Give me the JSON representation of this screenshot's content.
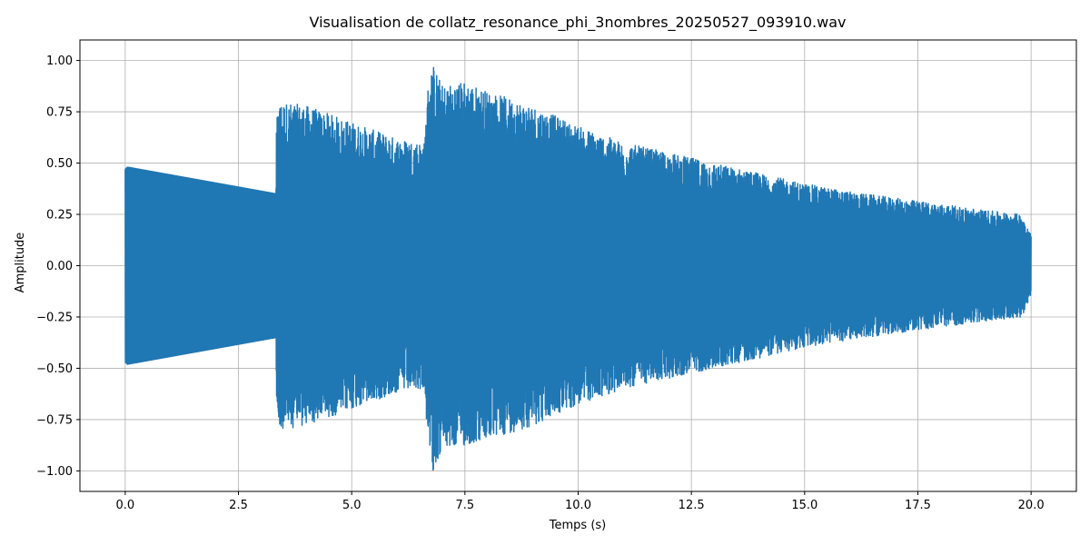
{
  "chart_data": {
    "type": "line",
    "title": "Visualisation de collatz_resonance_phi_3nombres_20250527_093910.wav",
    "xlabel": "Temps (s)",
    "ylabel": "Amplitude",
    "xlim": [
      -1.0,
      21.0
    ],
    "ylim": [
      -1.1,
      1.1
    ],
    "grid": true,
    "xticks": [
      0.0,
      2.5,
      5.0,
      7.5,
      10.0,
      12.5,
      15.0,
      17.5,
      20.0
    ],
    "xtick_labels": [
      "0.0",
      "2.5",
      "5.0",
      "7.5",
      "10.0",
      "12.5",
      "15.0",
      "17.5",
      "20.0"
    ],
    "yticks": [
      1.0,
      0.75,
      0.5,
      0.25,
      0.0,
      -0.25,
      -0.5,
      -0.75,
      -1.0
    ],
    "ytick_labels": [
      "1.00",
      "0.75",
      "0.50",
      "0.25",
      "0.00",
      "−0.25",
      "−0.50",
      "−0.75",
      "−1.00"
    ],
    "series": [
      {
        "color": "#1f77b4",
        "envelope": {
          "t": [
            0.0,
            0.05,
            3.33,
            3.34,
            3.4,
            4.0,
            5.0,
            6.0,
            6.6,
            6.7,
            6.8,
            7.0,
            7.5,
            8.0,
            9.0,
            10.0,
            11.0,
            12.0,
            13.0,
            14.0,
            15.0,
            16.0,
            17.0,
            18.0,
            19.0,
            19.8,
            20.0
          ],
          "upper": [
            0.47,
            0.48,
            0.35,
            0.7,
            0.8,
            0.78,
            0.7,
            0.62,
            0.6,
            0.92,
            0.98,
            0.88,
            0.9,
            0.85,
            0.78,
            0.68,
            0.6,
            0.55,
            0.5,
            0.45,
            0.4,
            0.36,
            0.33,
            0.3,
            0.27,
            0.25,
            0.15
          ],
          "lower": [
            -0.47,
            -0.48,
            -0.35,
            -0.7,
            -0.8,
            -0.78,
            -0.7,
            -0.62,
            -0.6,
            -0.92,
            -1.0,
            -0.9,
            -0.88,
            -0.85,
            -0.78,
            -0.68,
            -0.6,
            -0.55,
            -0.5,
            -0.45,
            -0.4,
            -0.36,
            -0.33,
            -0.3,
            -0.27,
            -0.25,
            -0.15
          ]
        }
      }
    ]
  }
}
